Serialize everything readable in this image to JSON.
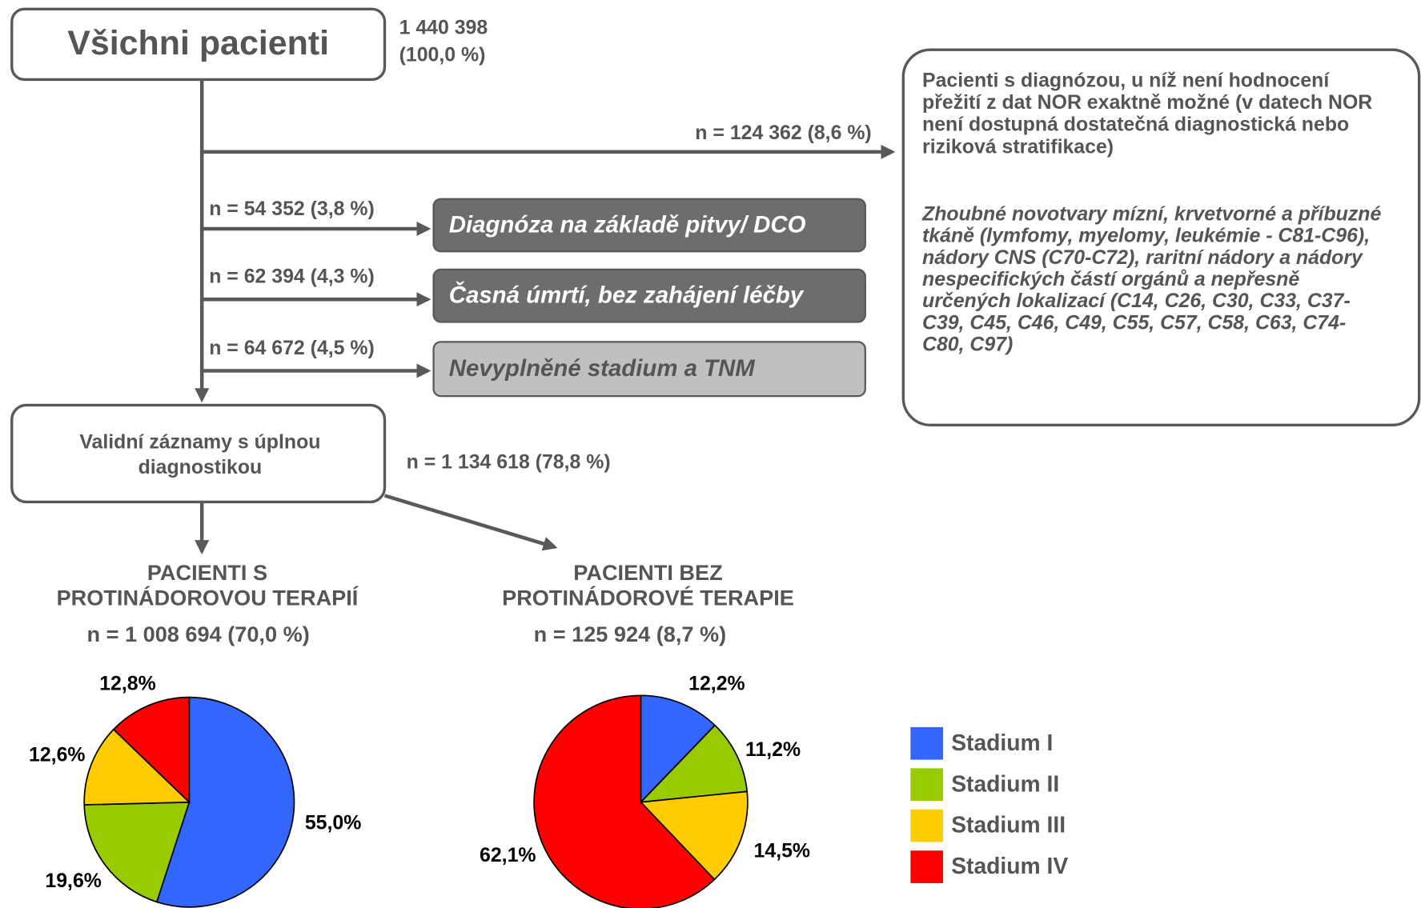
{
  "diagram": {
    "root": {
      "label": "Všichni pacienti",
      "count": [
        "1 440 398",
        "(100,0 %)"
      ]
    },
    "excluded_main": {
      "edge_label": "n = 124 362 (8,6 %)",
      "text": [
        "Pacienti s diagnózou, u níž není hodnocení",
        "přežití z dat NOR exaktně možné (v datech NOR",
        "není dostupná dostatečná diagnostická nebo",
        "riziková stratifikace)"
      ],
      "details": [
        "Zhoubné novotvary mízní, krvetvorné a příbuzné",
        "tkáně (lymfomy, myelomy, leukémie - C81-C96),",
        "nádory CNS (C70-C72), raritní nádory a nádory",
        "nespecifických částí orgánů a nepřesně",
        "určených lokalizací (C14, C26, C30, C33, C37-",
        "C39, C45, C46, C49, C55, C57, C58, C63, C74-",
        "C80, C97)"
      ]
    },
    "exclusions": [
      {
        "edge_label": "n = 54 352 (3,8 %)",
        "label": "Diagnóza na základě pitvy/ DCO"
      },
      {
        "edge_label": "n = 62 394 (4,3 %)",
        "label": "Časná úmrtí, bez zahájení léčby"
      },
      {
        "edge_label": "n = 64 672 (4,5 %)",
        "label": "Nevyplněné stadium a TNM"
      }
    ],
    "valid": {
      "label": [
        "Validní záznamy s úplnou",
        "diagnostikou"
      ],
      "count": "n = 1 134 618 (78,8 %)"
    }
  },
  "chart_data": [
    {
      "type": "pie",
      "title": [
        "PACIENTI S",
        "PROTINÁDOROVOU TERAPIÍ"
      ],
      "subtitle": "n = 1 008 694 (70,0 %)",
      "categories": [
        "Stadium I",
        "Stadium II",
        "Stadium III",
        "Stadium IV"
      ],
      "colors": [
        "#3366ff",
        "#99cc00",
        "#ffcc00",
        "#ff0000"
      ],
      "values": [
        55.0,
        19.6,
        12.6,
        12.8
      ],
      "value_labels": [
        "55,0%",
        "19,6%",
        "12,6%",
        "12,8%"
      ]
    },
    {
      "type": "pie",
      "title": [
        "PACIENTI BEZ",
        "PROTINÁDOROVÉ TERAPIE"
      ],
      "subtitle": "n = 125 924 (8,7 %)",
      "categories": [
        "Stadium I",
        "Stadium II",
        "Stadium III",
        "Stadium IV"
      ],
      "colors": [
        "#3366ff",
        "#99cc00",
        "#ffcc00",
        "#ff0000"
      ],
      "values": [
        12.2,
        11.2,
        14.5,
        62.1
      ],
      "value_labels": [
        "12,2%",
        "11,2%",
        "14,5%",
        "62,1%"
      ]
    }
  ]
}
